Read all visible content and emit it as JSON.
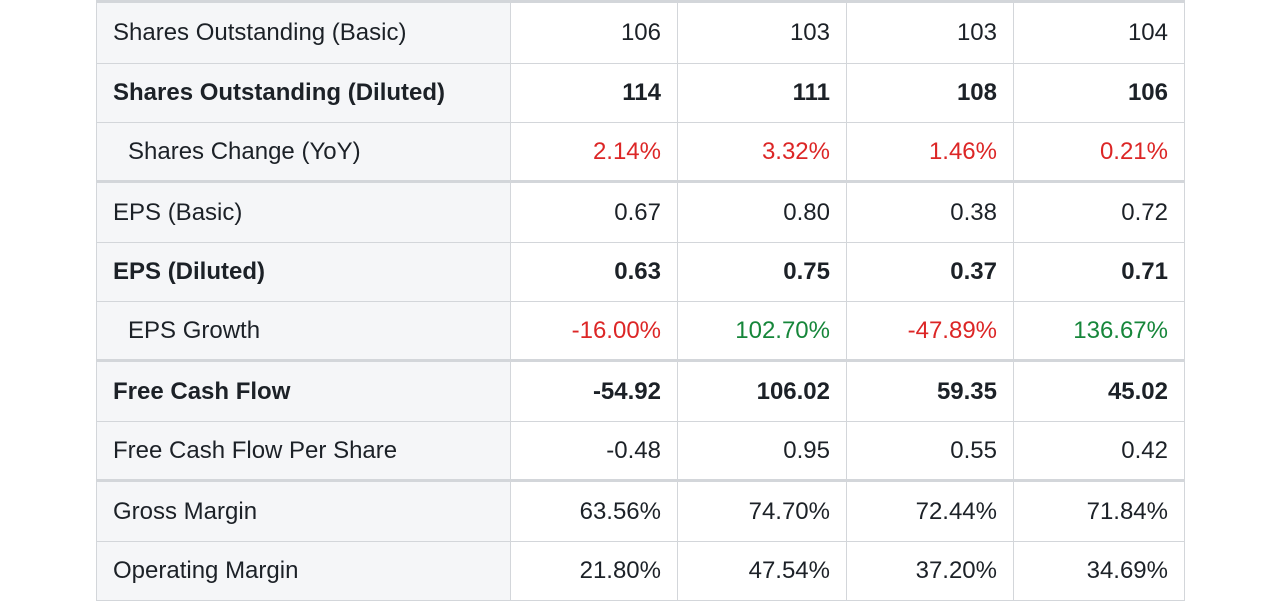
{
  "colors": {
    "negative": "#dc2626",
    "positive": "#16863a",
    "label_bg": "#f5f6f8",
    "border": "#d3d6da"
  },
  "rows": [
    {
      "label": "Shares Outstanding (Basic)",
      "values": [
        "106",
        "103",
        "103",
        "104"
      ]
    },
    {
      "label": "Shares Outstanding (Diluted)",
      "values": [
        "114",
        "111",
        "108",
        "106"
      ]
    },
    {
      "label": "Shares Change (YoY)",
      "values": [
        "2.14%",
        "3.32%",
        "1.46%",
        "0.21%"
      ]
    },
    {
      "label": "EPS (Basic)",
      "values": [
        "0.67",
        "0.80",
        "0.38",
        "0.72"
      ]
    },
    {
      "label": "EPS (Diluted)",
      "values": [
        "0.63",
        "0.75",
        "0.37",
        "0.71"
      ]
    },
    {
      "label": "EPS Growth",
      "values": [
        "-16.00%",
        "102.70%",
        "-47.89%",
        "136.67%"
      ]
    },
    {
      "label": "Free Cash Flow",
      "values": [
        "-54.92",
        "106.02",
        "59.35",
        "45.02"
      ]
    },
    {
      "label": "Free Cash Flow Per Share",
      "values": [
        "-0.48",
        "0.95",
        "0.55",
        "0.42"
      ]
    },
    {
      "label": "Gross Margin",
      "values": [
        "63.56%",
        "74.70%",
        "72.44%",
        "71.84%"
      ]
    },
    {
      "label": "Operating Margin",
      "values": [
        "21.80%",
        "47.54%",
        "37.20%",
        "34.69%"
      ]
    }
  ]
}
